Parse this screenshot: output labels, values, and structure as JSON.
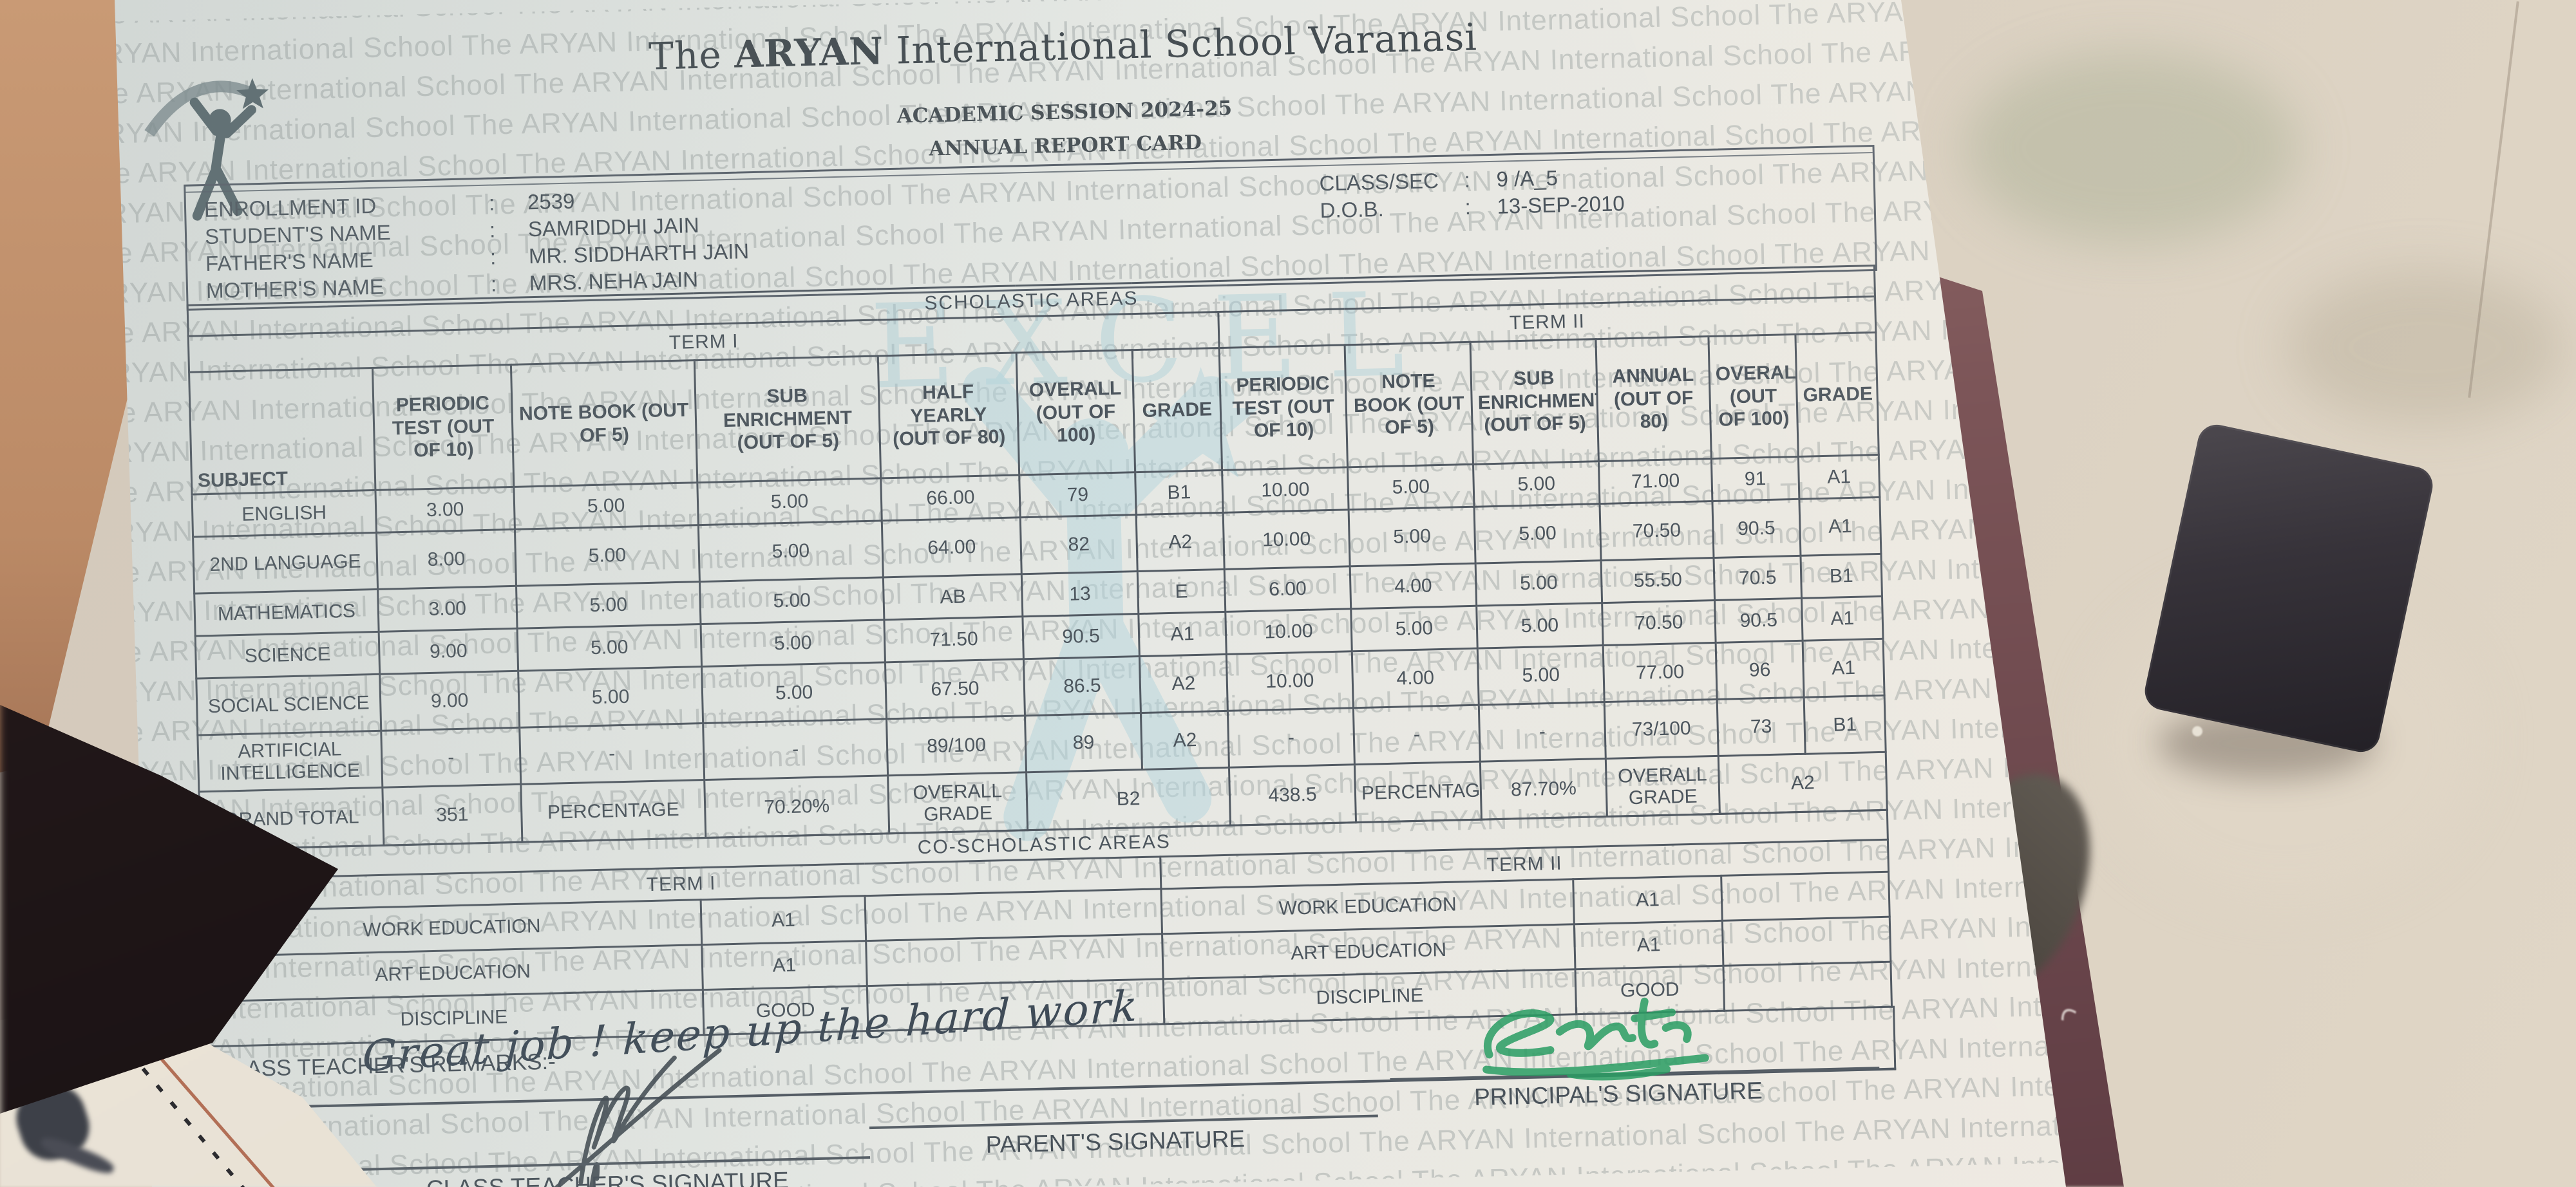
{
  "header": {
    "school_prefix": "The",
    "school_bold": "ARYAN",
    "school_suffix": " International School Varanasi",
    "session": "ACADEMIC SESSION 2024-25",
    "report_title": "ANNUAL REPORT CARD"
  },
  "watermark": {
    "text": "The ARYAN International School ",
    "accent_word": "EXCEL"
  },
  "student": {
    "separator": ":",
    "enrollment_label": "ENROLLMENT ID",
    "enrollment_value": "2539",
    "name_label": "STUDENT'S NAME",
    "name_value": "SAMRIDDHI JAIN",
    "father_label": "FATHER'S NAME",
    "father_value": "MR. SIDDHARTH JAIN",
    "mother_label": "MOTHER'S NAME",
    "mother_value": "MRS. NEHA JAIN",
    "class_label": "CLASS/SEC",
    "class_value": "9 /A_5",
    "dob_label": "D.O.B.",
    "dob_value": "13-SEP-2010"
  },
  "scholastic": {
    "title": "SCHOLASTIC AREAS",
    "term1_label": "TERM I",
    "term2_label": "TERM II",
    "subject_col": "SUBJECT",
    "term1_cols": [
      "PERIODIC TEST (OUT OF 10)",
      "NOTE BOOK (OUT OF 5)",
      "SUB ENRICHMENT (OUT OF 5)",
      "HALF YEARLY (OUT OF 80)",
      "OVERALL (OUT OF 100)",
      "GRADE"
    ],
    "term2_cols": [
      "PERIODIC TEST (OUT OF 10)",
      "NOTE BOOK (OUT OF 5)",
      "SUB ENRICHMENT (OUT OF 5)",
      "ANNUAL (OUT OF 80)",
      "OVERALL (OUT OF 100)",
      "GRADE"
    ],
    "rows": [
      {
        "subject": "ENGLISH",
        "t1": [
          "3.00",
          "5.00",
          "5.00",
          "66.00",
          "79",
          "B1"
        ],
        "t2": [
          "10.00",
          "5.00",
          "5.00",
          "71.00",
          "91",
          "A1"
        ]
      },
      {
        "subject": "2ND LANGUAGE",
        "t1": [
          "8.00",
          "5.00",
          "5.00",
          "64.00",
          "82",
          "A2"
        ],
        "t2": [
          "10.00",
          "5.00",
          "5.00",
          "70.50",
          "90.5",
          "A1"
        ]
      },
      {
        "subject": "MATHEMATICS",
        "t1": [
          "3.00",
          "5.00",
          "5.00",
          "AB",
          "13",
          "E"
        ],
        "t2": [
          "6.00",
          "4.00",
          "5.00",
          "55.50",
          "70.5",
          "B1"
        ]
      },
      {
        "subject": "SCIENCE",
        "t1": [
          "9.00",
          "5.00",
          "5.00",
          "71.50",
          "90.5",
          "A1"
        ],
        "t2": [
          "10.00",
          "5.00",
          "5.00",
          "70.50",
          "90.5",
          "A1"
        ]
      },
      {
        "subject": "SOCIAL SCIENCE",
        "t1": [
          "9.00",
          "5.00",
          "5.00",
          "67.50",
          "86.5",
          "A2"
        ],
        "t2": [
          "10.00",
          "4.00",
          "5.00",
          "77.00",
          "96",
          "A1"
        ]
      },
      {
        "subject": "ARTIFICIAL INTELLIGENCE",
        "t1": [
          "-",
          "-",
          "-",
          "89/100",
          "89",
          "A2"
        ],
        "t2": [
          "-",
          "-",
          "-",
          "73/100",
          "73",
          "B1"
        ]
      }
    ],
    "grand_total": {
      "label": "GRAND TOTAL",
      "t1": {
        "total": "351",
        "percentage_label": "PERCENTAGE",
        "percentage": "70.20%",
        "overall_grade_label": "OVERALL GRADE",
        "grade": "B2"
      },
      "t2": {
        "total": "438.5",
        "percentage_label": "PERCENTAGE",
        "percentage": "87.70%",
        "overall_grade_label": "OVERALL GRADE",
        "grade": "A2"
      }
    }
  },
  "co_scholastic": {
    "title": "CO-SCHOLASTIC AREAS",
    "term1_label": "TERM I",
    "term2_label": "TERM II",
    "term1_rows": [
      {
        "label": "WORK EDUCATION",
        "grade": "A1"
      },
      {
        "label": "ART EDUCATION",
        "grade": "A1"
      },
      {
        "label": "DISCIPLINE",
        "grade": "GOOD"
      }
    ],
    "term2_rows": [
      {
        "label": "WORK EDUCATION",
        "grade": "A1"
      },
      {
        "label": "ART EDUCATION",
        "grade": "A1"
      },
      {
        "label": "DISCIPLINE",
        "grade": "GOOD"
      }
    ]
  },
  "remarks": {
    "label": "CLASS TEACHER'S REMARKS:-",
    "handwritten_text": "Great job ! keep up the hard work"
  },
  "signatures": {
    "teacher_label": "CLASS TEACHER'S SIGNATURE",
    "parent_label": "PARENT'S SIGNATURE",
    "principal_label": "PRINCIPAL'S SIGNATURE"
  }
}
